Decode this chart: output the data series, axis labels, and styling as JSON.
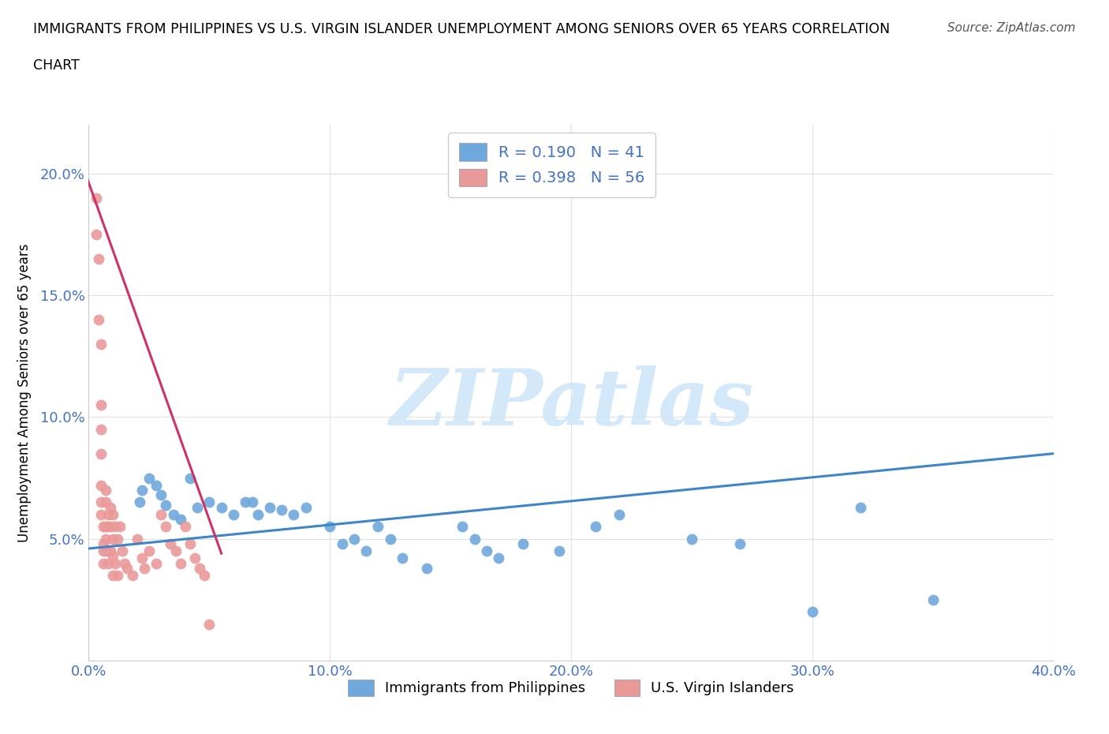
{
  "title_line1": "IMMIGRANTS FROM PHILIPPINES VS U.S. VIRGIN ISLANDER UNEMPLOYMENT AMONG SENIORS OVER 65 YEARS CORRELATION",
  "title_line2": "CHART",
  "source": "Source: ZipAtlas.com",
  "tick_color": "#4472c4",
  "ylabel": "Unemployment Among Seniors over 65 years",
  "xlim": [
    0.0,
    0.4
  ],
  "ylim": [
    0.0,
    0.22
  ],
  "xticks": [
    0.0,
    0.1,
    0.2,
    0.3,
    0.4
  ],
  "xtick_labels": [
    "0.0%",
    "10.0%",
    "20.0%",
    "30.0%",
    "40.0%"
  ],
  "yticks": [
    0.0,
    0.05,
    0.1,
    0.15,
    0.2
  ],
  "ytick_labels": [
    "",
    "5.0%",
    "10.0%",
    "15.0%",
    "20.0%"
  ],
  "blue_color": "#6fa8dc",
  "pink_color": "#ea9999",
  "blue_line_color": "#3d85c8",
  "pink_line_color": "#cc3366",
  "grid_color": "#e0e0e0",
  "watermark_color": "#cce5f8",
  "watermark": "ZIPatlas",
  "legend_label1": "Immigrants from Philippines",
  "legend_label2": "U.S. Virgin Islanders",
  "blue_scatter_x": [
    0.021,
    0.022,
    0.025,
    0.028,
    0.03,
    0.032,
    0.035,
    0.038,
    0.042,
    0.045,
    0.05,
    0.055,
    0.06,
    0.065,
    0.068,
    0.07,
    0.075,
    0.08,
    0.085,
    0.09,
    0.1,
    0.105,
    0.11,
    0.115,
    0.12,
    0.125,
    0.13,
    0.14,
    0.155,
    0.16,
    0.165,
    0.17,
    0.18,
    0.195,
    0.21,
    0.22,
    0.25,
    0.27,
    0.3,
    0.32,
    0.35
  ],
  "blue_scatter_y": [
    0.065,
    0.07,
    0.075,
    0.072,
    0.068,
    0.064,
    0.06,
    0.058,
    0.075,
    0.063,
    0.065,
    0.063,
    0.06,
    0.065,
    0.065,
    0.06,
    0.063,
    0.062,
    0.06,
    0.063,
    0.055,
    0.048,
    0.05,
    0.045,
    0.055,
    0.05,
    0.042,
    0.038,
    0.055,
    0.05,
    0.045,
    0.042,
    0.048,
    0.045,
    0.055,
    0.06,
    0.05,
    0.048,
    0.02,
    0.063,
    0.025
  ],
  "pink_scatter_x": [
    0.003,
    0.003,
    0.004,
    0.004,
    0.005,
    0.005,
    0.005,
    0.005,
    0.005,
    0.005,
    0.005,
    0.006,
    0.006,
    0.006,
    0.006,
    0.007,
    0.007,
    0.007,
    0.007,
    0.007,
    0.008,
    0.008,
    0.008,
    0.008,
    0.009,
    0.009,
    0.009,
    0.01,
    0.01,
    0.01,
    0.01,
    0.011,
    0.011,
    0.012,
    0.012,
    0.013,
    0.014,
    0.015,
    0.016,
    0.018,
    0.02,
    0.022,
    0.023,
    0.025,
    0.028,
    0.03,
    0.032,
    0.034,
    0.036,
    0.038,
    0.04,
    0.042,
    0.044,
    0.046,
    0.048,
    0.05
  ],
  "pink_scatter_y": [
    0.19,
    0.175,
    0.165,
    0.14,
    0.13,
    0.105,
    0.095,
    0.085,
    0.072,
    0.065,
    0.06,
    0.055,
    0.048,
    0.045,
    0.04,
    0.07,
    0.065,
    0.055,
    0.05,
    0.045,
    0.06,
    0.055,
    0.045,
    0.04,
    0.063,
    0.055,
    0.045,
    0.06,
    0.05,
    0.043,
    0.035,
    0.055,
    0.04,
    0.05,
    0.035,
    0.055,
    0.045,
    0.04,
    0.038,
    0.035,
    0.05,
    0.042,
    0.038,
    0.045,
    0.04,
    0.06,
    0.055,
    0.048,
    0.045,
    0.04,
    0.055,
    0.048,
    0.042,
    0.038,
    0.035,
    0.015
  ],
  "blue_line_x": [
    0.0,
    0.4
  ],
  "blue_line_y": [
    0.046,
    0.085
  ],
  "pink_line_x_start": -0.005,
  "pink_line_x_end": 0.055,
  "pink_line_y_start": 0.21,
  "pink_line_y_end": 0.044
}
